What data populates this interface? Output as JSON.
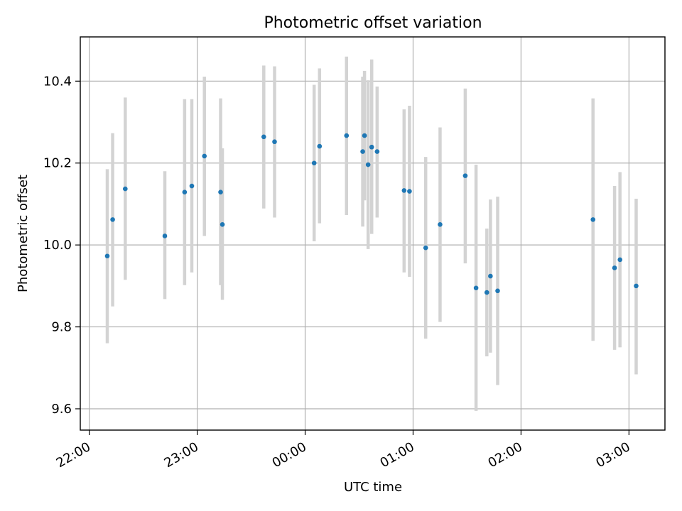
{
  "chart_data": {
    "type": "scatter",
    "title": "Photometric offset variation",
    "xlabel": "UTC time",
    "ylabel": "Photometric offset",
    "xlim": [
      "21:55",
      "03:20"
    ],
    "ylim": [
      9.548,
      10.508
    ],
    "x_ticks": [
      "22:00",
      "23:00",
      "00:00",
      "01:00",
      "02:00",
      "03:00"
    ],
    "y_ticks": [
      "9.6",
      "9.8",
      "10.0",
      "10.2",
      "10.4"
    ],
    "grid": true,
    "colors": {
      "point": "#1f77b4",
      "errorbar": "#d3d3d3",
      "grid": "#b0b0b0"
    },
    "points": [
      {
        "x": "22:10",
        "y": 9.973,
        "lo": 9.76,
        "hi": 10.185
      },
      {
        "x": "22:13",
        "y": 10.062,
        "lo": 9.85,
        "hi": 10.273
      },
      {
        "x": "22:20",
        "y": 10.137,
        "lo": 9.915,
        "hi": 10.36
      },
      {
        "x": "22:42",
        "y": 10.022,
        "lo": 9.868,
        "hi": 10.18
      },
      {
        "x": "22:53",
        "y": 10.129,
        "lo": 9.902,
        "hi": 10.356
      },
      {
        "x": "22:57",
        "y": 10.144,
        "lo": 9.933,
        "hi": 10.356
      },
      {
        "x": "23:04",
        "y": 10.217,
        "lo": 10.022,
        "hi": 10.411
      },
      {
        "x": "23:13",
        "y": 10.129,
        "lo": 9.902,
        "hi": 10.358
      },
      {
        "x": "23:14",
        "y": 10.05,
        "lo": 9.866,
        "hi": 10.236
      },
      {
        "x": "23:37",
        "y": 10.264,
        "lo": 10.089,
        "hi": 10.438
      },
      {
        "x": "23:43",
        "y": 10.252,
        "lo": 10.067,
        "hi": 10.436
      },
      {
        "x": "00:05",
        "y": 10.2,
        "lo": 10.009,
        "hi": 10.391
      },
      {
        "x": "00:08",
        "y": 10.241,
        "lo": 10.053,
        "hi": 10.431
      },
      {
        "x": "00:23",
        "y": 10.267,
        "lo": 10.073,
        "hi": 10.46
      },
      {
        "x": "00:32",
        "y": 10.228,
        "lo": 10.045,
        "hi": 10.411
      },
      {
        "x": "00:33",
        "y": 10.267,
        "lo": 10.109,
        "hi": 10.425
      },
      {
        "x": "00:35",
        "y": 10.196,
        "lo": 9.99,
        "hi": 10.402
      },
      {
        "x": "00:37",
        "y": 10.239,
        "lo": 10.027,
        "hi": 10.453
      },
      {
        "x": "00:40",
        "y": 10.228,
        "lo": 10.067,
        "hi": 10.387
      },
      {
        "x": "00:55",
        "y": 10.133,
        "lo": 9.933,
        "hi": 10.331
      },
      {
        "x": "00:58",
        "y": 10.131,
        "lo": 9.922,
        "hi": 10.34
      },
      {
        "x": "01:07",
        "y": 9.993,
        "lo": 9.771,
        "hi": 10.215
      },
      {
        "x": "01:15",
        "y": 10.05,
        "lo": 9.812,
        "hi": 10.287
      },
      {
        "x": "01:29",
        "y": 10.169,
        "lo": 9.955,
        "hi": 10.382
      },
      {
        "x": "01:35",
        "y": 9.895,
        "lo": 9.595,
        "hi": 10.196
      },
      {
        "x": "01:41",
        "y": 9.884,
        "lo": 9.728,
        "hi": 10.04
      },
      {
        "x": "01:43",
        "y": 9.924,
        "lo": 9.737,
        "hi": 10.111
      },
      {
        "x": "01:47",
        "y": 9.888,
        "lo": 9.658,
        "hi": 10.118
      },
      {
        "x": "02:40",
        "y": 10.062,
        "lo": 9.766,
        "hi": 10.358
      },
      {
        "x": "02:52",
        "y": 9.944,
        "lo": 9.744,
        "hi": 10.144
      },
      {
        "x": "02:55",
        "y": 9.964,
        "lo": 9.75,
        "hi": 10.178
      },
      {
        "x": "03:04",
        "y": 9.9,
        "lo": 9.684,
        "hi": 10.113
      }
    ]
  }
}
